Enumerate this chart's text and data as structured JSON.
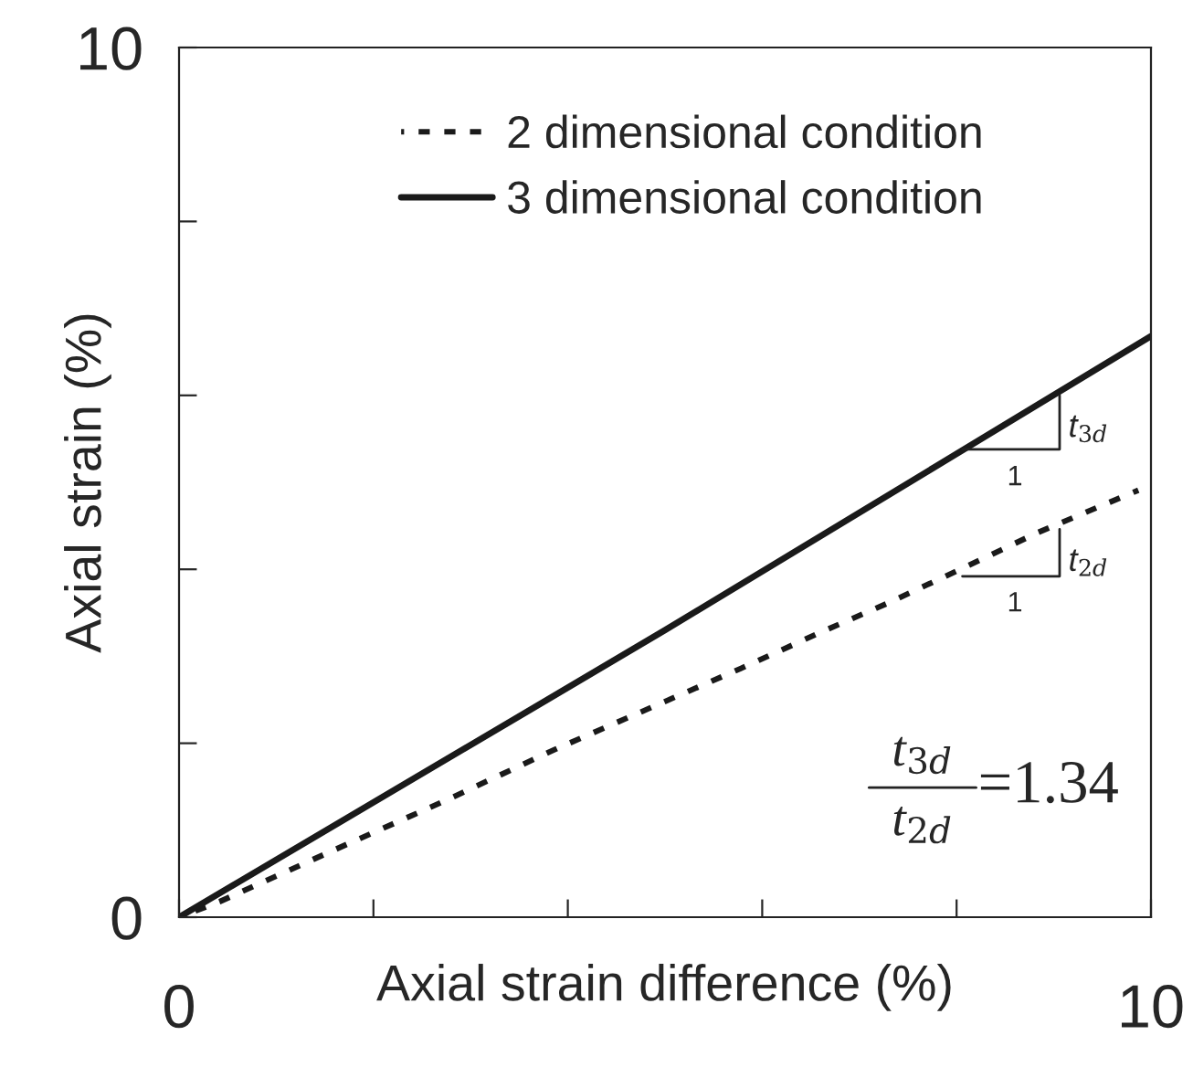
{
  "chart_data": {
    "type": "line",
    "xlabel": "Axial strain difference (%)",
    "ylabel": "Axial strain (%)",
    "xlim": [
      0,
      10
    ],
    "ylim": [
      0,
      10
    ],
    "xticks": [
      0,
      {
        "value": 2,
        "label": null
      },
      {
        "value": 4,
        "label": null
      },
      {
        "value": 6,
        "label": null
      },
      {
        "value": 8,
        "label": null
      },
      10
    ],
    "yticks": [
      0,
      {
        "value": 2,
        "label": null
      },
      {
        "value": 4,
        "label": null
      },
      {
        "value": 6,
        "label": null
      },
      {
        "value": 8,
        "label": null
      },
      10
    ],
    "series": [
      {
        "name": "2 dimensional condition",
        "color": "#1a1a1a",
        "line_style": "dashed",
        "x": [
          0,
          0.42,
          1.57,
          2.72,
          3.87,
          5.02,
          5.78,
          6.55,
          7.29,
          8.02,
          8.83,
          9.87
        ],
        "values": [
          0,
          0.18,
          0.76,
          1.33,
          1.93,
          2.49,
          2.86,
          3.25,
          3.61,
          3.99,
          4.42,
          4.91
        ]
      },
      {
        "name": "3 dimensional condition",
        "color": "#1a1a1a",
        "line_style": "solid",
        "x": [
          0,
          5,
          10
        ],
        "values": [
          0,
          3.3,
          6.68
        ]
      }
    ],
    "annotations": [
      {
        "text": "t$_{3d}$",
        "x": 9.06,
        "y": 6.0
      },
      "1",
      {
        "text": "t$_{2d}$",
        "x": 9.06,
        "y": 4.46
      },
      "1",
      "t$_{3d}$",
      "t$_{2d}$",
      "=1.34"
    ],
    "legend": "top right",
    "grid": false,
    "marker": "none"
  }
}
